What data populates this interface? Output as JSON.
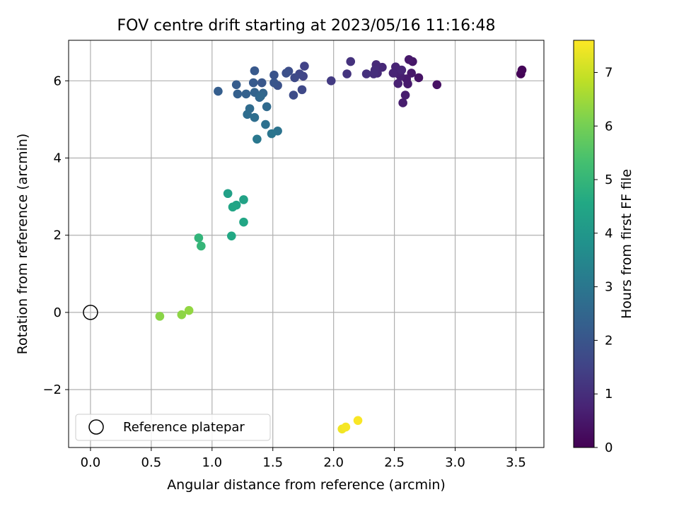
{
  "chart_data": {
    "type": "scatter",
    "title": "FOV centre drift starting at 2023/05/16 11:16:48",
    "xlabel": "Angular distance from reference (arcmin)",
    "ylabel": "Rotation from reference (arcmin)",
    "xlim": [
      -0.18,
      3.73
    ],
    "ylim": [
      -3.5,
      7.05
    ],
    "xticks": [
      0.0,
      0.5,
      1.0,
      1.5,
      2.0,
      2.5,
      3.0,
      3.5
    ],
    "xtick_labels": [
      "0.0",
      "0.5",
      "1.0",
      "1.5",
      "2.0",
      "2.5",
      "3.0",
      "3.5"
    ],
    "yticks": [
      -2,
      0,
      2,
      4,
      6
    ],
    "ytick_labels": [
      "−2",
      "0",
      "2",
      "4",
      "6"
    ],
    "grid": true,
    "colormap": "viridis",
    "colorbar": {
      "label": "Hours from first FF file",
      "range": [
        0,
        7.6
      ],
      "ticks": [
        0,
        1,
        2,
        3,
        4,
        5,
        6,
        7
      ],
      "tick_labels": [
        "0",
        "1",
        "2",
        "3",
        "4",
        "5",
        "6",
        "7"
      ]
    },
    "legend": {
      "label": "Reference platepar",
      "placement": "lower-left"
    },
    "reference_point": {
      "x": 0.0,
      "y": 0.0
    },
    "series": [
      {
        "points": [
          {
            "x": 3.54,
            "y": 6.18,
            "c": 0.05
          },
          {
            "x": 3.55,
            "y": 6.28,
            "c": 0.1
          },
          {
            "x": 2.85,
            "y": 5.9,
            "c": 0.35
          },
          {
            "x": 2.7,
            "y": 6.08,
            "c": 0.4
          },
          {
            "x": 2.65,
            "y": 6.5,
            "c": 0.45
          },
          {
            "x": 2.62,
            "y": 6.55,
            "c": 0.5
          },
          {
            "x": 2.64,
            "y": 6.2,
            "c": 0.5
          },
          {
            "x": 2.6,
            "y": 6.05,
            "c": 0.55
          },
          {
            "x": 2.61,
            "y": 5.92,
            "c": 0.55
          },
          {
            "x": 2.59,
            "y": 5.63,
            "c": 0.6
          },
          {
            "x": 2.57,
            "y": 5.43,
            "c": 0.6
          },
          {
            "x": 2.55,
            "y": 6.12,
            "c": 0.65
          },
          {
            "x": 2.53,
            "y": 5.93,
            "c": 0.7
          },
          {
            "x": 2.52,
            "y": 6.2,
            "c": 0.7
          },
          {
            "x": 2.51,
            "y": 6.36,
            "c": 0.75
          },
          {
            "x": 2.49,
            "y": 6.2,
            "c": 0.75
          },
          {
            "x": 2.56,
            "y": 6.28,
            "c": 0.8
          },
          {
            "x": 2.4,
            "y": 6.35,
            "c": 0.85
          },
          {
            "x": 2.36,
            "y": 6.2,
            "c": 0.9
          },
          {
            "x": 2.35,
            "y": 6.42,
            "c": 0.9
          },
          {
            "x": 2.34,
            "y": 6.28,
            "c": 0.95
          },
          {
            "x": 2.33,
            "y": 6.18,
            "c": 1.0
          },
          {
            "x": 2.27,
            "y": 6.18,
            "c": 1.05
          },
          {
            "x": 2.14,
            "y": 6.5,
            "c": 1.1
          },
          {
            "x": 2.11,
            "y": 6.18,
            "c": 1.15
          },
          {
            "x": 1.98,
            "y": 6.0,
            "c": 1.3
          },
          {
            "x": 1.76,
            "y": 6.38,
            "c": 1.5
          },
          {
            "x": 1.75,
            "y": 6.12,
            "c": 1.55
          },
          {
            "x": 1.72,
            "y": 6.18,
            "c": 1.6
          },
          {
            "x": 1.74,
            "y": 5.77,
            "c": 1.65
          },
          {
            "x": 1.68,
            "y": 6.08,
            "c": 1.7
          },
          {
            "x": 1.67,
            "y": 5.63,
            "c": 1.75
          },
          {
            "x": 1.63,
            "y": 6.25,
            "c": 1.8
          },
          {
            "x": 1.61,
            "y": 6.2,
            "c": 1.85
          },
          {
            "x": 1.54,
            "y": 5.88,
            "c": 1.9
          },
          {
            "x": 1.51,
            "y": 6.15,
            "c": 1.95
          },
          {
            "x": 1.51,
            "y": 5.95,
            "c": 2.0
          },
          {
            "x": 1.41,
            "y": 5.95,
            "c": 2.05
          },
          {
            "x": 1.35,
            "y": 6.26,
            "c": 2.1
          },
          {
            "x": 1.34,
            "y": 5.95,
            "c": 2.15
          },
          {
            "x": 1.2,
            "y": 5.9,
            "c": 2.2
          },
          {
            "x": 1.05,
            "y": 5.73,
            "c": 2.25
          },
          {
            "x": 1.21,
            "y": 5.66,
            "c": 2.3
          },
          {
            "x": 1.28,
            "y": 5.66,
            "c": 2.35
          },
          {
            "x": 1.35,
            "y": 5.7,
            "c": 2.4
          },
          {
            "x": 1.42,
            "y": 5.68,
            "c": 2.45
          },
          {
            "x": 1.39,
            "y": 5.57,
            "c": 2.5
          },
          {
            "x": 1.4,
            "y": 5.6,
            "c": 2.55
          },
          {
            "x": 1.45,
            "y": 5.33,
            "c": 2.6
          },
          {
            "x": 1.31,
            "y": 5.28,
            "c": 2.65
          },
          {
            "x": 1.29,
            "y": 5.13,
            "c": 2.7
          },
          {
            "x": 1.35,
            "y": 5.05,
            "c": 2.75
          },
          {
            "x": 1.44,
            "y": 4.87,
            "c": 2.8
          },
          {
            "x": 1.54,
            "y": 4.7,
            "c": 2.9
          },
          {
            "x": 1.49,
            "y": 4.63,
            "c": 2.95
          },
          {
            "x": 1.37,
            "y": 4.49,
            "c": 3.05
          },
          {
            "x": 1.13,
            "y": 3.08,
            "c": 4.3
          },
          {
            "x": 1.26,
            "y": 2.92,
            "c": 4.35
          },
          {
            "x": 1.2,
            "y": 2.78,
            "c": 4.4
          },
          {
            "x": 1.17,
            "y": 2.73,
            "c": 4.45
          },
          {
            "x": 1.26,
            "y": 2.34,
            "c": 4.5
          },
          {
            "x": 1.16,
            "y": 1.98,
            "c": 4.55
          },
          {
            "x": 0.89,
            "y": 1.93,
            "c": 4.95
          },
          {
            "x": 0.91,
            "y": 1.72,
            "c": 5.0
          },
          {
            "x": 0.57,
            "y": -0.1,
            "c": 6.25
          },
          {
            "x": 0.75,
            "y": -0.06,
            "c": 6.3
          },
          {
            "x": 0.81,
            "y": 0.05,
            "c": 6.35
          },
          {
            "x": 2.07,
            "y": -3.02,
            "c": 7.45
          },
          {
            "x": 2.1,
            "y": -2.97,
            "c": 7.5
          },
          {
            "x": 2.2,
            "y": -2.8,
            "c": 7.55
          }
        ]
      }
    ]
  }
}
